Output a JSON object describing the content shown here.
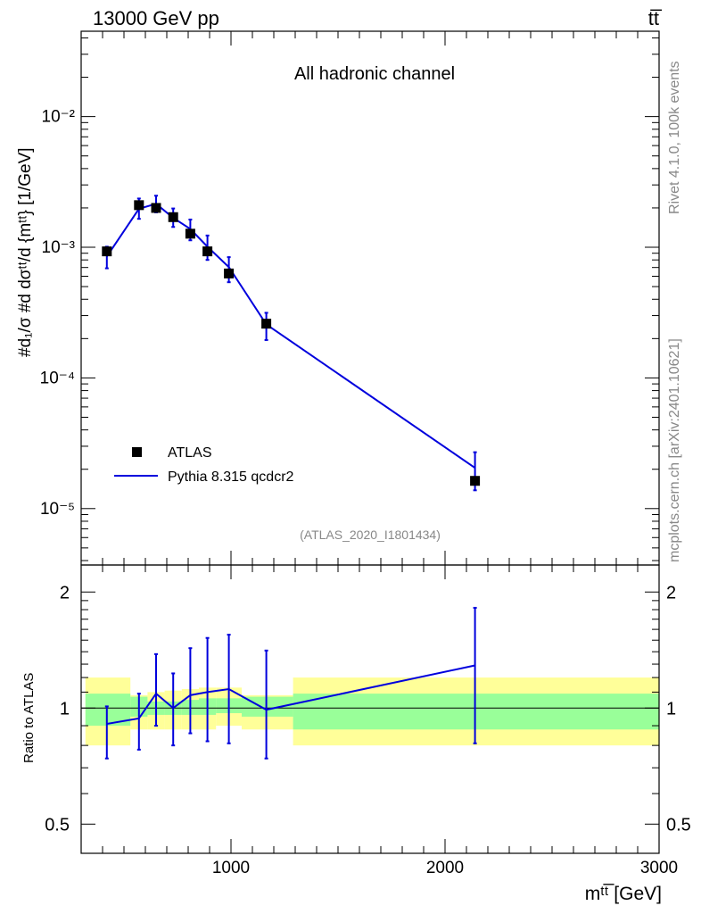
{
  "header": {
    "energy": "13000 GeV pp",
    "process": "tt̅"
  },
  "side": {
    "rivet": "Rivet 4.1.0,  100k events",
    "source": "mcplots.cern.ch [arXiv:2401.10621]"
  },
  "colors": {
    "mc": "#0000dd",
    "data": "#000000",
    "band_outer": "#ffff99",
    "band_inner": "#99ff99",
    "gray_text": "#888888"
  },
  "chart_data": [
    {
      "type": "scatter",
      "panel": "main",
      "title": "All hadronic channel",
      "analysis_id": "(ATLAS_2020_I1801434)",
      "ylabel": "#d₁/σ #d dσᵗᵗ/d {mᵗᵗ} [1/GeV]",
      "yscale": "log",
      "xlim": [
        300,
        3000
      ],
      "ylim": [
        3.7e-06,
        0.045
      ],
      "ytick_labels": [
        "10⁻²",
        "10⁻³",
        "10⁻⁴",
        "10⁻⁵"
      ],
      "ytick_values": [
        0.01,
        0.001,
        0.0001,
        1e-05
      ],
      "legend_position": "bottom-left",
      "series": [
        {
          "name": "ATLAS",
          "style": "markers",
          "x": [
            420,
            570,
            650,
            730,
            810,
            890,
            990,
            1165,
            2140
          ],
          "y": [
            0.00093,
            0.0021,
            0.002,
            0.0017,
            0.00127,
            0.00093,
            0.00063,
            0.00026,
            1.63e-05
          ]
        },
        {
          "name": "Pythia 8.315 qcdcr2",
          "style": "line",
          "x": [
            420,
            570,
            650,
            730,
            810,
            890,
            990,
            1165,
            2140
          ],
          "y": [
            0.00085,
            0.00197,
            0.00215,
            0.00168,
            0.00138,
            0.00101,
            0.000705,
            0.000257,
            2.05e-05
          ],
          "err_lo": [
            0.00069,
            0.00165,
            0.00185,
            0.00143,
            0.00113,
            0.0008,
            0.00054,
            0.000195,
            1.38e-05
          ],
          "err_hi": [
            0.00101,
            0.00236,
            0.00248,
            0.00198,
            0.00163,
            0.00123,
            0.00084,
            0.000315,
            2.7e-05
          ]
        }
      ]
    },
    {
      "type": "line",
      "panel": "ratio",
      "ylabel": "Ratio to ATLAS",
      "xlabel": "mᵗᵗ̅ [GeV]",
      "xlim": [
        300,
        3000
      ],
      "ylim": [
        0.42,
        2.35
      ],
      "xtick_labels": [
        "1000",
        "2000",
        "3000"
      ],
      "xtick_values": [
        1000,
        2000,
        3000
      ],
      "ytick_labels": [
        "2",
        "1",
        "0.5"
      ],
      "ytick_values": [
        2,
        1,
        0.5
      ],
      "series": [
        {
          "name": "Pythia 8.315 qcdcr2 / ATLAS",
          "x": [
            420,
            570,
            650,
            730,
            810,
            890,
            990,
            1165,
            2140
          ],
          "y": [
            0.91,
            0.94,
            1.09,
            1.0,
            1.08,
            1.1,
            1.12,
            0.99,
            1.29
          ],
          "err_lo": [
            0.74,
            0.78,
            0.9,
            0.8,
            0.86,
            0.82,
            0.81,
            0.74,
            0.81
          ],
          "err_hi": [
            1.01,
            1.09,
            1.38,
            1.23,
            1.43,
            1.52,
            1.55,
            1.41,
            1.82
          ]
        }
      ],
      "bands": {
        "edges": [
          320,
          530,
          610,
          690,
          770,
          850,
          930,
          1050,
          1290,
          3000
        ],
        "outer_lo": [
          0.8,
          0.88,
          0.88,
          0.88,
          0.88,
          0.88,
          0.9,
          0.88,
          0.8
        ],
        "outer_hi": [
          1.2,
          1.08,
          1.1,
          1.11,
          1.12,
          1.13,
          1.13,
          1.08,
          1.2
        ],
        "inner_lo": [
          0.9,
          0.95,
          0.96,
          0.96,
          0.96,
          0.96,
          0.97,
          0.95,
          0.88
        ],
        "inner_hi": [
          1.09,
          1.07,
          1.04,
          1.04,
          1.05,
          1.06,
          1.06,
          1.07,
          1.09
        ]
      }
    }
  ]
}
